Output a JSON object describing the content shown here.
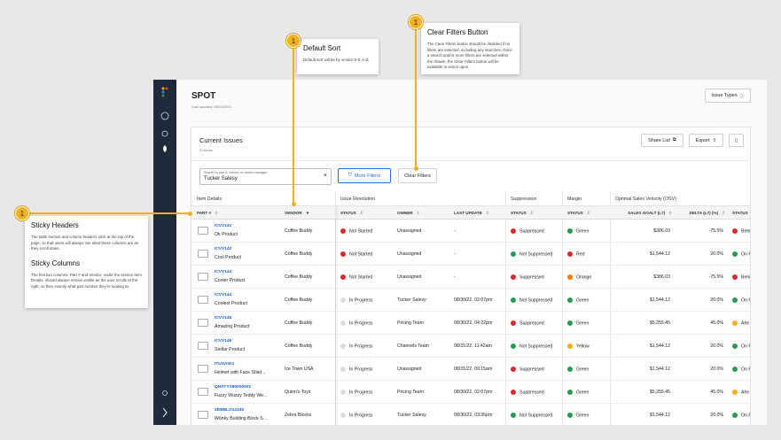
{
  "annotations": [
    {
      "badge": "1",
      "title": "Default Sort",
      "body": "Default sort will be by vendor 0-9, A-Z."
    },
    {
      "badge": "1",
      "title": "Clear Filters Button",
      "body": "The Clear Filters button should be disabled if no filters are selected, including any searches. Once a search and/or more filters are selected within the drawer, the Clear Filters button will be available to action upon."
    },
    {
      "badge": "1",
      "sections": [
        {
          "title": "Sticky Headers",
          "body": "The table section and column headers stick at the top of the page, so that users will always see what those columns are as they scroll down."
        },
        {
          "title": "Sticky Columns",
          "body": "The first two columns: Part # and Vendor, under the section Item Details, should always remain visible as the user scrolls to the right, so they exactly what part number they're looking at."
        }
      ]
    }
  ],
  "header": {
    "title": "SPOT",
    "updated": "Last updated: 05/11/2021",
    "issue_types": "Issue Types"
  },
  "card": {
    "title": "Current Issues",
    "count": "9 issues",
    "share": "Share List",
    "export": "Export",
    "search_label": "Search by part #, vendor, or vendor manager",
    "search_value": "Tucker Salesy",
    "more_filters": "More Filters",
    "clear_filters": "Clear Filters"
  },
  "table": {
    "groups": [
      "Item Details",
      "Issue Resolution",
      "Suppression",
      "Margin",
      "Optimal Sales Velocity (OSV)"
    ],
    "columns": [
      "PART #",
      "VENDOR",
      "STATUS",
      "OWNER",
      "LAST UPDATE",
      "STATUS",
      "STATUS",
      "SALES GOALT (L7)",
      "DELTA (L7) (%)",
      "STATUS"
    ],
    "dot_colors": {
      "Not Started": "#d32f2f",
      "In Progress": "#dcdcdc",
      "Suppressed": "#d32f2f",
      "Not Suppressed": "#2e9a4e",
      "Green": "#2e9a4e",
      "Red": "#d32f2f",
      "Orange": "#f57c00",
      "Yellow": "#f2b01e",
      "Behi": "#d32f2f",
      "On P": "#2e9a4e",
      "Ahe": "#f2b01e"
    },
    "rows": [
      {
        "part": "ICVV141",
        "name": "Ok Product",
        "vendor": "Coffee Buddy",
        "status": "Not Started",
        "owner": "Unassigned",
        "last_update": "-",
        "suppression": "Suppressed",
        "margin": "Green",
        "sales_goal": "$386.03",
        "delta": "-75.5%",
        "osv": "Behi"
      },
      {
        "part": "ICVV142",
        "name": "Cool Product",
        "vendor": "Coffee Buddy",
        "status": "Not Started",
        "owner": "Unassigned",
        "last_update": "-",
        "suppression": "Not Suppressed",
        "margin": "Red",
        "sales_goal": "$1,544.12",
        "delta": "20.0%",
        "osv": "On P"
      },
      {
        "part": "ICVV143",
        "name": "Cooler Product",
        "vendor": "Coffee Buddy",
        "status": "Not Started",
        "owner": "Unassigned",
        "last_update": "-",
        "suppression": "Suppressed",
        "margin": "Orange",
        "sales_goal": "$386.03",
        "delta": "-75.5%",
        "osv": "Behi"
      },
      {
        "part": "ICVV144",
        "name": "Coolest Product",
        "vendor": "Coffee Buddy",
        "status": "In Progress",
        "owner": "Tucker Salesy",
        "last_update": "08/30/22, 02:07pm",
        "suppression": "Not Suppressed",
        "margin": "Green",
        "sales_goal": "$1,544.12",
        "delta": "20.0%",
        "osv": "On P"
      },
      {
        "part": "ICVV145",
        "name": "Amazing Product",
        "vendor": "Coffee Buddy",
        "status": "In Progress",
        "owner": "Pricing Team",
        "last_update": "08/30/22, 04:22pm",
        "suppression": "Suppressed",
        "margin": "Green",
        "sales_goal": "$5,255.45",
        "delta": "45.0%",
        "osv": "Ahe"
      },
      {
        "part": "ICVV146",
        "name": "Stellar Product",
        "vendor": "Coffee Buddy",
        "status": "In Progress",
        "owner": "Channels Team",
        "last_update": "08/31/22, 11:42am",
        "suppression": "Not Suppressed",
        "margin": "Yellow",
        "sales_goal": "$1,544.12",
        "delta": "20.0%",
        "osv": "On P"
      },
      {
        "part": "ITUSA001",
        "name": "Helmet with Face Shiel...",
        "vendor": "Ice Town USA",
        "status": "In Progress",
        "owner": "Unassigned",
        "last_update": "08/31/22, 09:15am",
        "suppression": "Suppressed",
        "margin": "Green",
        "sales_goal": "$1,544.12",
        "delta": "20.0%",
        "osv": "On P"
      },
      {
        "part": "QNSTYS80000001",
        "name": "Fuzzy Wuzzy Teddy We...",
        "vendor": "Quinn's Toys",
        "status": "In Progress",
        "owner": "Pricing Team",
        "last_update": "08/30/22, 02:07pm",
        "suppression": "Suppressed",
        "margin": "Green",
        "sales_goal": "$5,255.45",
        "delta": "45.0%",
        "osv": "Ahe"
      },
      {
        "part": "ZEBBLO12345",
        "name": "Wonky Building Block S...",
        "vendor": "Zebra Blocks",
        "status": "In Progress",
        "owner": "Tucker Salesy",
        "last_update": "08/30/22, 03:36pm",
        "suppression": "Not Suppressed",
        "margin": "Green",
        "sales_goal": "$1,544.12",
        "delta": "20.0%",
        "osv": "On P"
      }
    ]
  }
}
